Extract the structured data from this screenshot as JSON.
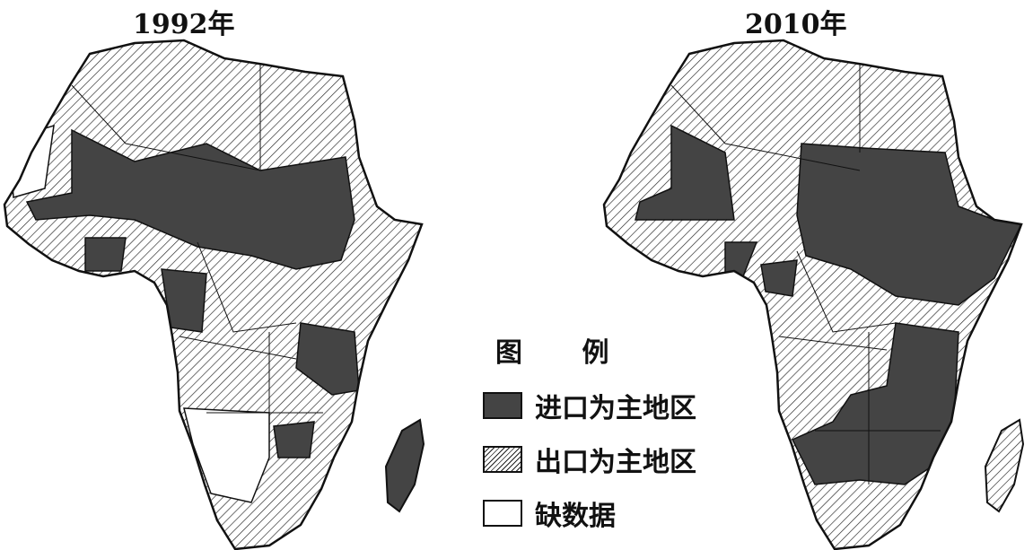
{
  "maps": [
    {
      "title": "1992年"
    },
    {
      "title": "2010年"
    }
  ],
  "legend": {
    "title": "图 例",
    "items": [
      {
        "label": "进口为主地区",
        "style": "dark",
        "color": "#444444"
      },
      {
        "label": "出口为主地区",
        "style": "hatched"
      },
      {
        "label": "缺数据",
        "style": "white",
        "color": "#ffffff"
      }
    ]
  }
}
